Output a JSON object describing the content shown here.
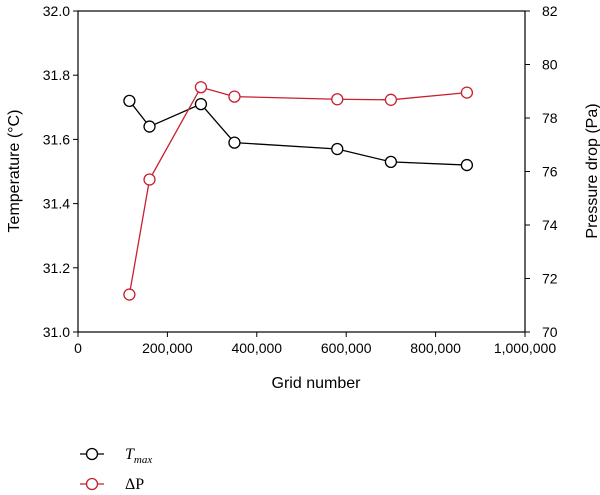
{
  "chart_data": {
    "type": "line",
    "title": "",
    "xlabel": "Grid number",
    "ylabel_left": "Temperature (°C)",
    "ylabel_right": "Pressure drop (Pa)",
    "xlim": [
      0,
      1000000
    ],
    "ylim_left": [
      31.0,
      32.0
    ],
    "ylim_right": [
      70,
      82
    ],
    "x_ticks": [
      0,
      200000,
      400000,
      600000,
      800000,
      1000000
    ],
    "x_tick_labels": [
      "0",
      "200,000",
      "400,000",
      "600,000",
      "800,000",
      "1,000,000"
    ],
    "y_left_ticks": [
      31.0,
      31.2,
      31.4,
      31.6,
      31.8,
      32.0
    ],
    "y_left_tick_labels": [
      "31.0",
      "31.2",
      "31.4",
      "31.6",
      "31.8",
      "32.0"
    ],
    "y_right_ticks": [
      70,
      72,
      74,
      76,
      78,
      80,
      82
    ],
    "y_right_tick_labels": [
      "70",
      "72",
      "74",
      "76",
      "78",
      "80",
      "82"
    ],
    "grid": false,
    "legend_position": "bottom-left",
    "series": [
      {
        "name": "T",
        "name_subscript": "max",
        "axis": "left",
        "color": "#000000",
        "marker": "open-circle",
        "x": [
          115000,
          160000,
          275000,
          350000,
          580000,
          700000,
          870000
        ],
        "y": [
          31.72,
          31.64,
          31.71,
          31.59,
          31.57,
          31.53,
          31.52
        ]
      },
      {
        "name": "ΔP",
        "axis": "right",
        "color": "#c8202f",
        "marker": "open-circle",
        "x": [
          115000,
          160000,
          275000,
          350000,
          580000,
          700000,
          870000
        ],
        "y": [
          71.4,
          75.7,
          79.15,
          78.8,
          78.7,
          78.68,
          78.95
        ]
      }
    ]
  }
}
